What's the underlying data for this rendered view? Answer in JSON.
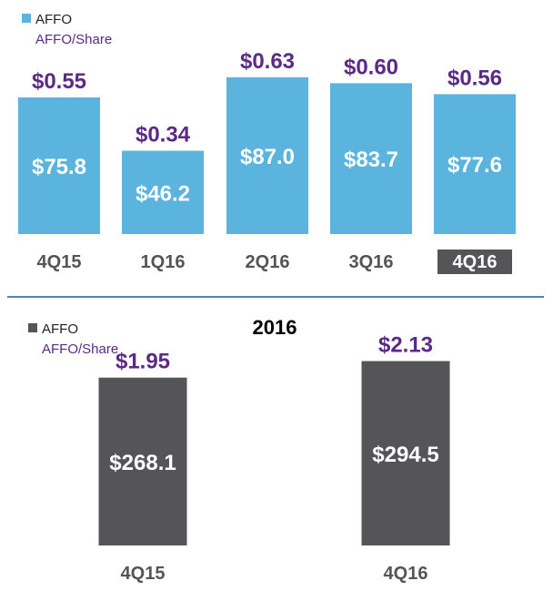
{
  "colors": {
    "quarter_bar": "#5ab4de",
    "annual_bar": "#555558",
    "per_share": "#5b2a86",
    "divider": "#4b86b4",
    "highlight_label_bg": "#555558"
  },
  "chart_data": [
    {
      "type": "bar",
      "legend": {
        "placement": "top-left",
        "series_label": "AFFO",
        "secondary_label": "AFFO/Share"
      },
      "categories": [
        "4Q15",
        "1Q16",
        "2Q16",
        "3Q16",
        "4Q16"
      ],
      "highlighted_category": "4Q16",
      "series": [
        {
          "name": "AFFO",
          "values": [
            75.8,
            46.2,
            87.0,
            83.7,
            77.6
          ]
        }
      ],
      "value_labels": [
        "$75.8",
        "$46.2",
        "$87.0",
        "$83.7",
        "$77.6"
      ],
      "per_share": [
        0.55,
        0.34,
        0.63,
        0.6,
        0.56
      ],
      "per_share_labels": [
        "$0.55",
        "$0.34",
        "$0.63",
        "$0.60",
        "$0.56"
      ],
      "ylim": [
        0,
        95
      ],
      "grid": false
    },
    {
      "type": "bar",
      "title": "2016",
      "legend": {
        "placement": "top-left",
        "series_label": "AFFO",
        "secondary_label": "AFFO/Share"
      },
      "categories": [
        "4Q15",
        "4Q16"
      ],
      "series": [
        {
          "name": "AFFO",
          "values": [
            268.1,
            294.5
          ]
        }
      ],
      "value_labels": [
        "$268.1",
        "$294.5"
      ],
      "per_share": [
        1.95,
        2.13
      ],
      "per_share_labels": [
        "$1.95",
        "$2.13"
      ],
      "ylim": [
        0,
        320
      ],
      "grid": false
    }
  ]
}
